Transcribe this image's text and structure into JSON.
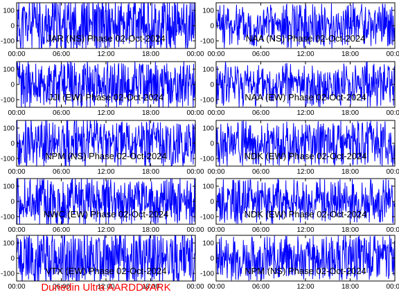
{
  "footer": "Dunedin Ultra AARDDVARK",
  "colors": {
    "trace": "#0000ff",
    "axis": "#000000",
    "footer": "#ff0000"
  },
  "chart_data": [
    {
      "type": "line",
      "title": "JAR (NS) Phase 02-Oct-2024",
      "ylim": [
        -150,
        150
      ],
      "yticks": [
        "100",
        "0",
        "-100"
      ],
      "yticks_values": [
        100,
        0,
        -100
      ],
      "xticks": [
        "00:00",
        "06:00",
        "12:00",
        "18:00",
        "00:00"
      ],
      "xlim_hours": [
        0,
        24
      ],
      "amplitude": 150,
      "density": 1.0,
      "seed": 11
    },
    {
      "type": "line",
      "title": "NAA (NS) Phase 02-Oct-2024",
      "ylim": [
        -150,
        150
      ],
      "yticks": [
        "100",
        "0",
        "-100"
      ],
      "yticks_values": [
        100,
        0,
        -100
      ],
      "xticks": [
        "00:00",
        "06:00",
        "12:00",
        "18:00",
        "00:00"
      ],
      "xlim_hours": [
        0,
        24
      ],
      "amplitude": 130,
      "density": 0.8,
      "seed": 23
    },
    {
      "type": "line",
      "title": "JJI (EW) Phase 02-Oct-2024",
      "ylim": [
        -150,
        150
      ],
      "yticks": [
        "100",
        "0",
        "-100"
      ],
      "yticks_values": [
        100,
        0,
        -100
      ],
      "xticks": [
        "00:00",
        "06:00",
        "12:00",
        "18:00",
        "00:00"
      ],
      "xlim_hours": [
        0,
        24
      ],
      "amplitude": 140,
      "density": 0.85,
      "seed": 37
    },
    {
      "type": "line",
      "title": "NAA (EW) Phase 02-Oct-2024",
      "ylim": [
        -150,
        150
      ],
      "yticks": [
        "100",
        "0",
        "-100"
      ],
      "yticks_values": [
        100,
        0,
        -100
      ],
      "xticks": [
        "00:00",
        "06:00",
        "12:00",
        "18:00",
        "00:00"
      ],
      "xlim_hours": [
        0,
        24
      ],
      "amplitude": 130,
      "density": 0.75,
      "seed": 41
    },
    {
      "type": "line",
      "title": "NPM (NS) Phase 02-Oct-2024",
      "ylim": [
        -150,
        150
      ],
      "yticks": [
        "100",
        "0",
        "-100"
      ],
      "yticks_values": [
        100,
        0,
        -100
      ],
      "xticks": [
        "00:00",
        "06:00",
        "12:00",
        "18:00",
        "00:00"
      ],
      "xlim_hours": [
        0,
        24
      ],
      "amplitude": 140,
      "density": 0.8,
      "seed": 53
    },
    {
      "type": "line",
      "title": "NDK (EW) Phase 02-Oct-2024",
      "ylim": [
        -150,
        150
      ],
      "yticks": [
        "100",
        "0",
        "-100"
      ],
      "yticks_values": [
        100,
        0,
        -100
      ],
      "xticks": [
        "00:00",
        "06:00",
        "12:00",
        "18:00",
        "00:00"
      ],
      "xlim_hours": [
        0,
        24
      ],
      "amplitude": 130,
      "density": 0.75,
      "seed": 67
    },
    {
      "type": "line",
      "title": "NWC (EW) Phase 02-Oct-2024",
      "ylim": [
        -150,
        150
      ],
      "yticks": [
        "100",
        "0",
        "-100"
      ],
      "yticks_values": [
        100,
        0,
        -100
      ],
      "xticks": [
        "00:00",
        "06:00",
        "12:00",
        "18:00",
        "00:00"
      ],
      "xlim_hours": [
        0,
        24
      ],
      "amplitude": 140,
      "density": 0.85,
      "seed": 71
    },
    {
      "type": "line",
      "title": "NDK (EW) Phase 02-Oct-2024",
      "ylim": [
        -150,
        150
      ],
      "yticks": [
        "100",
        "0",
        "-100"
      ],
      "yticks_values": [
        100,
        0,
        -100
      ],
      "xticks": [
        "00:00",
        "06:00",
        "12:00",
        "18:00",
        "00:00"
      ],
      "xlim_hours": [
        0,
        24
      ],
      "amplitude": 130,
      "density": 0.75,
      "seed": 83
    },
    {
      "type": "line",
      "title": "VTX (EW) Phase 02-Oct-2024",
      "ylim": [
        -150,
        150
      ],
      "yticks": [
        "100",
        "0",
        "-100"
      ],
      "yticks_values": [
        100,
        0,
        -100
      ],
      "xticks": [
        "00:00",
        "06:00",
        "12:00",
        "18:00",
        "00:00"
      ],
      "xlim_hours": [
        0,
        24
      ],
      "amplitude": 150,
      "density": 1.0,
      "seed": 97
    },
    {
      "type": "line",
      "title": "NPM (NS) Phase 02-Oct-2024",
      "ylim": [
        -150,
        150
      ],
      "yticks": [
        "100",
        "0",
        "-100"
      ],
      "yticks_values": [
        100,
        0,
        -100
      ],
      "xticks": [
        "00:00",
        "06:00",
        "12:00",
        "18:00",
        "00:00"
      ],
      "xlim_hours": [
        0,
        24
      ],
      "amplitude": 130,
      "density": 0.8,
      "seed": 101
    }
  ]
}
